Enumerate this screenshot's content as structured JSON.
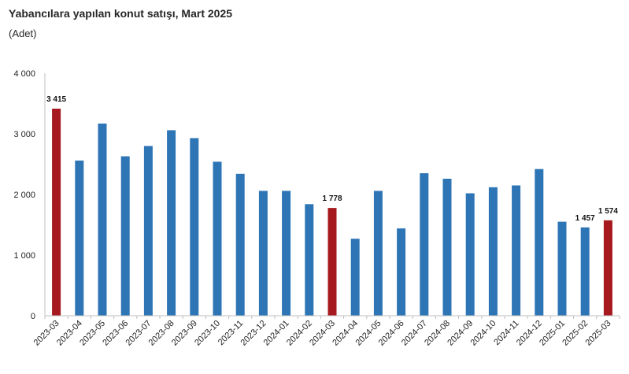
{
  "title": "Yabancılara yapılan konut satışı, Mart 2025",
  "subtitle": "(Adet)",
  "colors": {
    "default": "#2E75B6",
    "highlight": "#A6191E",
    "axis": "#bfbfbf"
  },
  "chart_data": {
    "type": "bar",
    "categories": [
      "2023-03",
      "2023-04",
      "2023-05",
      "2023-06",
      "2023-07",
      "2023-08",
      "2023-09",
      "2023-10",
      "2023-11",
      "2023-12",
      "2024-01",
      "2024-02",
      "2024-03",
      "2024-04",
      "2024-05",
      "2024-06",
      "2024-07",
      "2024-08",
      "2024-09",
      "2024-10",
      "2024-11",
      "2024-12",
      "2025-01",
      "2025-02",
      "2025-03"
    ],
    "values": [
      3415,
      2560,
      3170,
      2630,
      2800,
      3060,
      2930,
      2540,
      2340,
      2060,
      2060,
      1840,
      1778,
      1270,
      2060,
      1440,
      2350,
      2260,
      2020,
      2120,
      2150,
      2420,
      1550,
      1457,
      1574
    ],
    "highlighted": [
      "2023-03",
      "2024-03",
      "2025-03"
    ],
    "data_labels": {
      "2023-03": "3 415",
      "2024-03": "1 778",
      "2025-02": "1 457",
      "2025-03": "1 574"
    },
    "yticks": [
      0,
      1000,
      2000,
      3000,
      4000
    ],
    "ytick_labels": [
      "0",
      "1 000",
      "2 000",
      "3 000",
      "4 000"
    ],
    "ylim": [
      0,
      4000
    ],
    "grid": false,
    "legend": "none"
  }
}
